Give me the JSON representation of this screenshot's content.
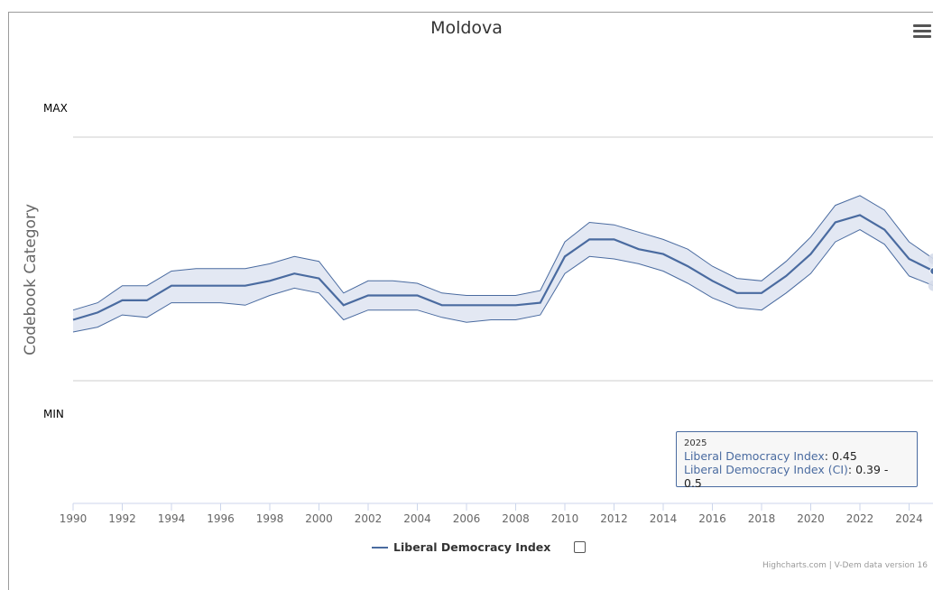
{
  "title": "Moldova",
  "y_axis_title": "Codebook Category",
  "y_category_labels": {
    "max": "MAX",
    "min": "MIN"
  },
  "legend": {
    "label": "Liberal Democracy Index"
  },
  "credits": "Highcharts.com | V-Dem data version 16",
  "tooltip": {
    "year": "2025",
    "line1_label": "Liberal Democracy Index",
    "line1_value": "0.45",
    "line2_label": "Liberal Democracy Index (CI)",
    "line2_value": "0.39 - 0.5"
  },
  "colors": {
    "line": "#4a6ba0",
    "band": "#e3e8f3",
    "grid": "#cccccc"
  },
  "chart_data": {
    "type": "line",
    "title": "Moldova",
    "ylabel": "Codebook Category",
    "xlabel": "",
    "x_ticks": [
      1990,
      1992,
      1994,
      1996,
      1998,
      2000,
      2002,
      2004,
      2006,
      2008,
      2010,
      2012,
      2014,
      2016,
      2018,
      2020,
      2022,
      2024
    ],
    "ylim": [
      0,
      1
    ],
    "series": [
      {
        "name": "Liberal Democracy Index",
        "x": [
          1990,
          1991,
          1992,
          1993,
          1994,
          1995,
          1996,
          1997,
          1998,
          1999,
          2000,
          2001,
          2002,
          2003,
          2004,
          2005,
          2006,
          2007,
          2008,
          2009,
          2010,
          2011,
          2012,
          2013,
          2014,
          2015,
          2016,
          2017,
          2018,
          2019,
          2020,
          2021,
          2022,
          2023,
          2024,
          2025
        ],
        "values": [
          0.25,
          0.28,
          0.33,
          0.33,
          0.39,
          0.39,
          0.39,
          0.39,
          0.41,
          0.44,
          0.42,
          0.31,
          0.35,
          0.35,
          0.35,
          0.31,
          0.31,
          0.31,
          0.31,
          0.32,
          0.51,
          0.58,
          0.58,
          0.54,
          0.52,
          0.47,
          0.41,
          0.36,
          0.36,
          0.43,
          0.52,
          0.65,
          0.68,
          0.62,
          0.5,
          0.45
        ],
        "ci_low": [
          0.2,
          0.22,
          0.27,
          0.26,
          0.32,
          0.32,
          0.32,
          0.31,
          0.35,
          0.38,
          0.36,
          0.25,
          0.29,
          0.29,
          0.29,
          0.26,
          0.24,
          0.25,
          0.25,
          0.27,
          0.44,
          0.51,
          0.5,
          0.48,
          0.45,
          0.4,
          0.34,
          0.3,
          0.29,
          0.36,
          0.44,
          0.57,
          0.62,
          0.56,
          0.43,
          0.39
        ],
        "ci_high": [
          0.29,
          0.32,
          0.39,
          0.39,
          0.45,
          0.46,
          0.46,
          0.46,
          0.48,
          0.51,
          0.49,
          0.36,
          0.41,
          0.41,
          0.4,
          0.36,
          0.35,
          0.35,
          0.35,
          0.37,
          0.57,
          0.65,
          0.64,
          0.61,
          0.58,
          0.54,
          0.47,
          0.42,
          0.41,
          0.49,
          0.59,
          0.72,
          0.76,
          0.7,
          0.57,
          0.5
        ]
      }
    ],
    "grid": true,
    "legend_position": "bottom"
  }
}
